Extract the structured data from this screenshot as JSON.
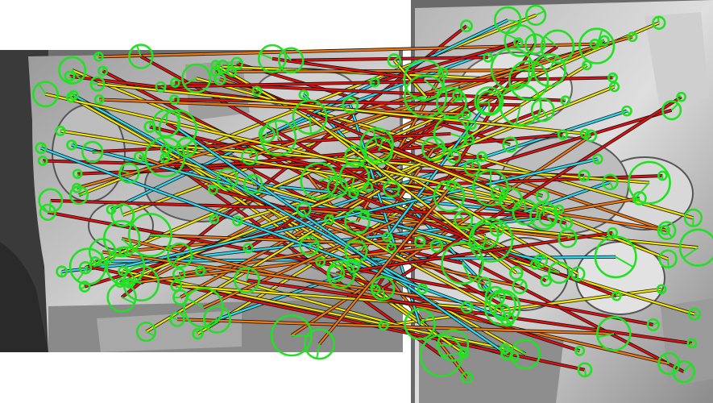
{
  "scene": {
    "description_visible_text": "",
    "left_image_tone": "grayscale",
    "right_image_tone": "grayscale"
  },
  "colors": {
    "background": "#ffffff",
    "keypoint": "#22e022",
    "match_red": "#e01010",
    "match_orange": "#ee7711",
    "match_yellow": "#f2e200",
    "match_cyan": "#30d8ee",
    "outline": "#111111"
  },
  "legend_palette_names": [
    "red",
    "orange",
    "yellow",
    "cyan"
  ]
}
